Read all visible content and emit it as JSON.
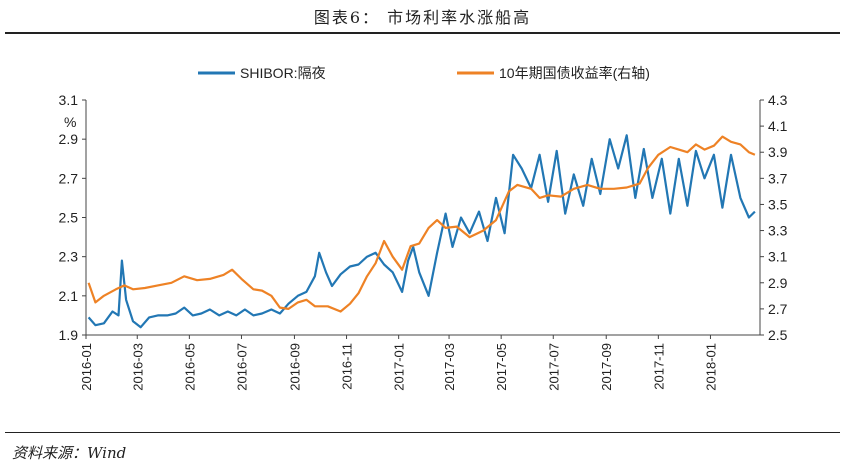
{
  "figure_title": "图表6：  市场利率水涨船高",
  "source": "资料来源：Wind",
  "watermark": "",
  "colors": {
    "shibor": "#2277b4",
    "bond": "#ee8225",
    "axis": "#444444",
    "text": "#222222"
  },
  "chart_data": {
    "type": "line",
    "title": "",
    "left_axis": {
      "label": "%",
      "range": [
        1.9,
        3.1
      ],
      "ticks": [
        "1.9",
        "2.1",
        "2.3",
        "2.5",
        "2.7",
        "2.9",
        "3.1"
      ]
    },
    "right_axis": {
      "label": "",
      "range": [
        2.5,
        4.3
      ],
      "ticks": [
        "2.5",
        "2.7",
        "2.9",
        "3.1",
        "3.3",
        "3.5",
        "3.7",
        "3.9",
        "4.1",
        "4.3"
      ]
    },
    "x_axis": {
      "range": [
        "2016-01-01",
        "2018-02-28"
      ],
      "tick_labels": [
        "2016-01",
        "2016-03",
        "2016-05",
        "2016-07",
        "2016-09",
        "2016-11",
        "2017-01",
        "2017-03",
        "2017-05",
        "2017-07",
        "2017-09",
        "2017-11",
        "2018-01"
      ]
    },
    "legend": {
      "position": "top",
      "entries": [
        "SHIBOR:隔夜",
        "10年期国债收益率(右轴)"
      ]
    },
    "grid": false,
    "series": [
      {
        "name": "SHIBOR:隔夜",
        "axis": "left",
        "points": [
          [
            "2016-01-04",
            1.99
          ],
          [
            "2016-01-12",
            1.95
          ],
          [
            "2016-01-22",
            1.96
          ],
          [
            "2016-02-01",
            2.02
          ],
          [
            "2016-02-08",
            2.0
          ],
          [
            "2016-02-12",
            2.28
          ],
          [
            "2016-02-17",
            2.08
          ],
          [
            "2016-02-25",
            1.97
          ],
          [
            "2016-03-05",
            1.94
          ],
          [
            "2016-03-15",
            1.99
          ],
          [
            "2016-03-25",
            2.0
          ],
          [
            "2016-04-05",
            2.0
          ],
          [
            "2016-04-15",
            2.01
          ],
          [
            "2016-04-25",
            2.04
          ],
          [
            "2016-05-05",
            2.0
          ],
          [
            "2016-05-15",
            2.01
          ],
          [
            "2016-05-25",
            2.03
          ],
          [
            "2016-06-05",
            2.0
          ],
          [
            "2016-06-15",
            2.02
          ],
          [
            "2016-06-25",
            2.0
          ],
          [
            "2016-07-05",
            2.03
          ],
          [
            "2016-07-15",
            2.0
          ],
          [
            "2016-07-25",
            2.01
          ],
          [
            "2016-08-05",
            2.03
          ],
          [
            "2016-08-15",
            2.01
          ],
          [
            "2016-08-25",
            2.06
          ],
          [
            "2016-09-05",
            2.1
          ],
          [
            "2016-09-15",
            2.12
          ],
          [
            "2016-09-25",
            2.2
          ],
          [
            "2016-09-30",
            2.32
          ],
          [
            "2016-10-08",
            2.22
          ],
          [
            "2016-10-15",
            2.15
          ],
          [
            "2016-10-25",
            2.21
          ],
          [
            "2016-11-05",
            2.25
          ],
          [
            "2016-11-15",
            2.26
          ],
          [
            "2016-11-25",
            2.3
          ],
          [
            "2016-12-05",
            2.32
          ],
          [
            "2016-12-15",
            2.26
          ],
          [
            "2016-12-25",
            2.22
          ],
          [
            "2017-01-05",
            2.12
          ],
          [
            "2017-01-12",
            2.28
          ],
          [
            "2017-01-18",
            2.35
          ],
          [
            "2017-01-25",
            2.22
          ],
          [
            "2017-02-05",
            2.1
          ],
          [
            "2017-02-15",
            2.32
          ],
          [
            "2017-02-25",
            2.52
          ],
          [
            "2017-03-05",
            2.35
          ],
          [
            "2017-03-15",
            2.5
          ],
          [
            "2017-03-25",
            2.42
          ],
          [
            "2017-04-05",
            2.53
          ],
          [
            "2017-04-15",
            2.38
          ],
          [
            "2017-04-25",
            2.6
          ],
          [
            "2017-05-05",
            2.42
          ],
          [
            "2017-05-15",
            2.82
          ],
          [
            "2017-05-25",
            2.75
          ],
          [
            "2017-06-05",
            2.65
          ],
          [
            "2017-06-15",
            2.82
          ],
          [
            "2017-06-25",
            2.58
          ],
          [
            "2017-07-05",
            2.84
          ],
          [
            "2017-07-15",
            2.52
          ],
          [
            "2017-07-25",
            2.72
          ],
          [
            "2017-08-05",
            2.56
          ],
          [
            "2017-08-15",
            2.8
          ],
          [
            "2017-08-25",
            2.62
          ],
          [
            "2017-09-05",
            2.9
          ],
          [
            "2017-09-15",
            2.75
          ],
          [
            "2017-09-25",
            2.92
          ],
          [
            "2017-10-05",
            2.6
          ],
          [
            "2017-10-15",
            2.85
          ],
          [
            "2017-10-25",
            2.6
          ],
          [
            "2017-11-05",
            2.8
          ],
          [
            "2017-11-15",
            2.52
          ],
          [
            "2017-11-25",
            2.8
          ],
          [
            "2017-12-05",
            2.56
          ],
          [
            "2017-12-15",
            2.84
          ],
          [
            "2017-12-25",
            2.7
          ],
          [
            "2018-01-05",
            2.82
          ],
          [
            "2018-01-15",
            2.55
          ],
          [
            "2018-01-25",
            2.82
          ],
          [
            "2018-02-05",
            2.6
          ],
          [
            "2018-02-15",
            2.5
          ],
          [
            "2018-02-22",
            2.53
          ]
        ]
      },
      {
        "name": "10年期国债收益率(右轴)",
        "axis": "right",
        "points": [
          [
            "2016-01-04",
            2.9
          ],
          [
            "2016-01-12",
            2.75
          ],
          [
            "2016-01-22",
            2.8
          ],
          [
            "2016-02-05",
            2.85
          ],
          [
            "2016-02-15",
            2.88
          ],
          [
            "2016-02-25",
            2.85
          ],
          [
            "2016-03-10",
            2.86
          ],
          [
            "2016-03-25",
            2.88
          ],
          [
            "2016-04-10",
            2.9
          ],
          [
            "2016-04-25",
            2.95
          ],
          [
            "2016-05-10",
            2.92
          ],
          [
            "2016-05-25",
            2.93
          ],
          [
            "2016-06-10",
            2.96
          ],
          [
            "2016-06-20",
            3.0
          ],
          [
            "2016-07-01",
            2.93
          ],
          [
            "2016-07-15",
            2.85
          ],
          [
            "2016-07-25",
            2.84
          ],
          [
            "2016-08-05",
            2.8
          ],
          [
            "2016-08-15",
            2.71
          ],
          [
            "2016-08-25",
            2.7
          ],
          [
            "2016-09-05",
            2.75
          ],
          [
            "2016-09-15",
            2.77
          ],
          [
            "2016-09-25",
            2.72
          ],
          [
            "2016-10-10",
            2.72
          ],
          [
            "2016-10-25",
            2.68
          ],
          [
            "2016-11-05",
            2.74
          ],
          [
            "2016-11-15",
            2.82
          ],
          [
            "2016-11-25",
            2.95
          ],
          [
            "2016-12-05",
            3.05
          ],
          [
            "2016-12-15",
            3.22
          ],
          [
            "2016-12-25",
            3.1
          ],
          [
            "2017-01-05",
            3.0
          ],
          [
            "2017-01-15",
            3.18
          ],
          [
            "2017-01-25",
            3.2
          ],
          [
            "2017-02-05",
            3.32
          ],
          [
            "2017-02-15",
            3.38
          ],
          [
            "2017-02-25",
            3.32
          ],
          [
            "2017-03-10",
            3.33
          ],
          [
            "2017-03-25",
            3.25
          ],
          [
            "2017-04-10",
            3.3
          ],
          [
            "2017-04-25",
            3.38
          ],
          [
            "2017-05-10",
            3.6
          ],
          [
            "2017-05-20",
            3.65
          ],
          [
            "2017-06-05",
            3.62
          ],
          [
            "2017-06-15",
            3.55
          ],
          [
            "2017-06-25",
            3.57
          ],
          [
            "2017-07-10",
            3.56
          ],
          [
            "2017-07-25",
            3.62
          ],
          [
            "2017-08-10",
            3.65
          ],
          [
            "2017-08-25",
            3.62
          ],
          [
            "2017-09-10",
            3.62
          ],
          [
            "2017-09-25",
            3.63
          ],
          [
            "2017-10-10",
            3.66
          ],
          [
            "2017-10-20",
            3.78
          ],
          [
            "2017-11-01",
            3.88
          ],
          [
            "2017-11-15",
            3.94
          ],
          [
            "2017-11-25",
            3.92
          ],
          [
            "2017-12-05",
            3.9
          ],
          [
            "2017-12-15",
            3.96
          ],
          [
            "2017-12-25",
            3.92
          ],
          [
            "2018-01-05",
            3.95
          ],
          [
            "2018-01-15",
            4.02
          ],
          [
            "2018-01-25",
            3.98
          ],
          [
            "2018-02-05",
            3.96
          ],
          [
            "2018-02-15",
            3.9
          ],
          [
            "2018-02-22",
            3.88
          ]
        ]
      }
    ]
  }
}
